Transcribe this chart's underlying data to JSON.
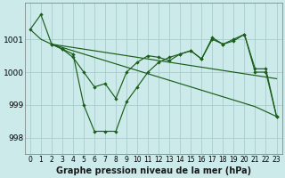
{
  "title": "Graphe pression niveau de la mer (hPa)",
  "background_color": "#cceaea",
  "grid_color": "#aacccc",
  "line_color": "#1a5e1a",
  "x_ticks": [
    0,
    1,
    2,
    3,
    4,
    5,
    6,
    7,
    8,
    9,
    10,
    11,
    12,
    13,
    14,
    15,
    16,
    17,
    18,
    19,
    20,
    21,
    22,
    23
  ],
  "ylim": [
    997.5,
    1002.1
  ],
  "yticks": [
    998,
    999,
    1000,
    1001
  ],
  "series1_x": [
    0,
    1,
    2,
    3,
    4,
    5,
    6,
    7,
    8,
    9,
    10,
    11,
    12,
    13,
    14,
    15,
    16,
    17,
    18,
    19,
    20,
    21,
    22,
    23
  ],
  "series1_y": [
    1001.3,
    1001.75,
    1000.85,
    1000.7,
    1000.55,
    999.0,
    998.2,
    998.2,
    998.2,
    999.1,
    999.55,
    1000.0,
    1000.3,
    1000.45,
    1000.55,
    1000.65,
    1000.4,
    1001.05,
    1000.85,
    1000.95,
    1001.15,
    1000.0,
    1000.0,
    998.65
  ],
  "series2_x": [
    0,
    1,
    2,
    3,
    4,
    5,
    6,
    7,
    8,
    9,
    10,
    11,
    12,
    13,
    14,
    15,
    16,
    17,
    18,
    19,
    20,
    21,
    22,
    23
  ],
  "series2_y": [
    1001.3,
    1001.0,
    1000.85,
    1000.75,
    1000.65,
    1000.55,
    1000.45,
    1000.35,
    1000.25,
    1000.15,
    1000.05,
    999.95,
    999.85,
    999.75,
    999.65,
    999.55,
    999.45,
    999.35,
    999.25,
    999.15,
    999.05,
    998.95,
    998.8,
    998.65
  ],
  "series3_x": [
    2,
    3,
    4,
    5,
    6,
    7,
    8,
    9,
    10,
    11,
    12,
    13,
    14,
    15,
    16,
    17,
    18,
    19,
    20,
    21,
    22,
    23
  ],
  "series3_y": [
    1000.85,
    1000.8,
    1000.75,
    1000.7,
    1000.65,
    1000.6,
    1000.55,
    1000.5,
    1000.45,
    1000.4,
    1000.35,
    1000.3,
    1000.25,
    1000.2,
    1000.15,
    1000.1,
    1000.05,
    1000.0,
    999.95,
    999.9,
    999.85,
    999.8
  ],
  "series4_x": [
    2,
    3,
    4,
    5,
    6,
    7,
    8,
    9,
    10,
    11,
    12,
    13,
    14,
    15,
    16,
    17,
    18,
    19,
    20,
    21,
    22,
    23
  ],
  "series4_y": [
    1000.85,
    1000.7,
    1000.45,
    1000.0,
    999.55,
    999.65,
    999.2,
    1000.0,
    1000.3,
    1000.5,
    1000.45,
    1000.35,
    1000.55,
    1000.65,
    1000.4,
    1001.0,
    1000.85,
    1001.0,
    1001.15,
    1000.1,
    1000.1,
    998.65
  ],
  "xlabel_fontsize": 7,
  "ylabel_fontsize": 6.5,
  "tick_fontsize": 5.5,
  "marker": "D",
  "markersize": 2.2,
  "linewidth": 0.85
}
